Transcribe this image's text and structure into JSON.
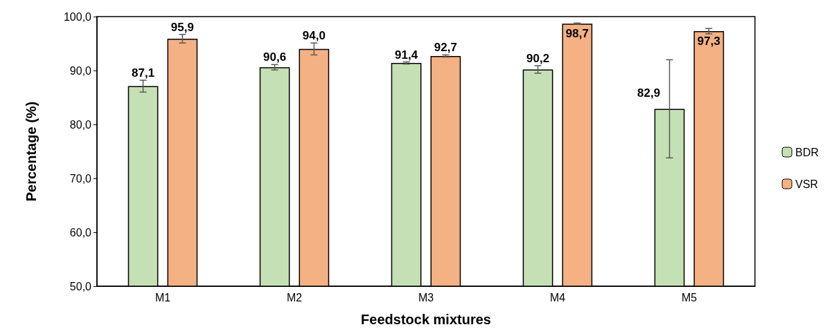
{
  "chart_data": {
    "type": "bar",
    "xlabel": "Feedstock mixtures",
    "ylabel": "Percentage (%)",
    "categories": [
      "M1",
      "M2",
      "M3",
      "M4",
      "M5"
    ],
    "series": [
      {
        "name": "BDR",
        "color": "#c5e0b4",
        "values": [
          87.1,
          90.6,
          91.4,
          90.2,
          82.9
        ],
        "errors": [
          1.1,
          0.5,
          0.2,
          0.7,
          9.1
        ],
        "value_labels": [
          "87,1",
          "90,6",
          "91,4",
          "90,2",
          "82,9"
        ]
      },
      {
        "name": "VSR",
        "color": "#f4b183",
        "values": [
          95.9,
          94.0,
          92.7,
          98.7,
          97.3
        ],
        "errors": [
          0.8,
          1.1,
          0.2,
          0.1,
          0.5
        ],
        "value_labels": [
          "95,9",
          "94,0",
          "92,7",
          "98,7",
          "97,3"
        ]
      }
    ],
    "ylim": [
      50,
      100
    ],
    "yticks": [
      {
        "value": 50,
        "label": "50,0"
      },
      {
        "value": 60,
        "label": "60,0"
      },
      {
        "value": 70,
        "label": "70,0"
      },
      {
        "value": 80,
        "label": "80,0"
      },
      {
        "value": 90,
        "label": "90,0"
      },
      {
        "value": 100,
        "label": "100,0"
      }
    ],
    "grid": false,
    "legend": "right"
  }
}
